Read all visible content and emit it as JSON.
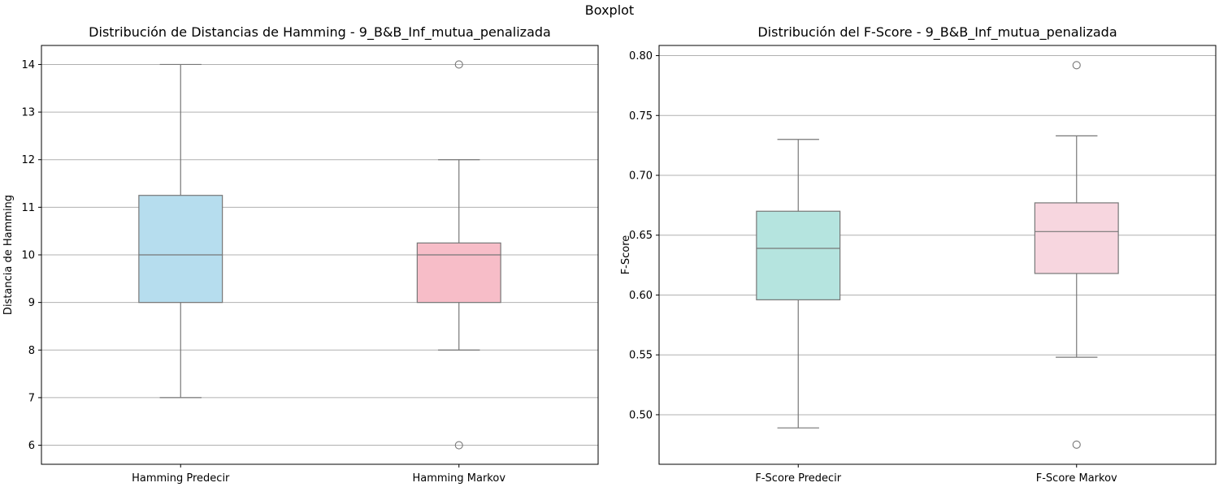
{
  "figure": {
    "suptitle": "Boxplot"
  },
  "chart_data": [
    {
      "type": "boxplot",
      "title": "Distribución de Distancias de Hamming - 9_B&B_Inf_mutua_penalizada",
      "xlabel": "",
      "ylabel": "Distancia de Hamming",
      "ylim": [
        5.6,
        14.4
      ],
      "yticks": [
        6,
        7,
        8,
        9,
        10,
        11,
        12,
        13,
        14
      ],
      "grid": "y",
      "categories": [
        "Hamming Predecir",
        "Hamming Markov"
      ],
      "boxes": [
        {
          "label": "Hamming Predecir",
          "whisker_low": 7,
          "q1": 9,
          "median": 10,
          "q3": 11.25,
          "whisker_high": 14,
          "outliers": [],
          "color": "#b6ddee"
        },
        {
          "label": "Hamming Markov",
          "whisker_low": 8,
          "q1": 9,
          "median": 10,
          "q3": 10.25,
          "whisker_high": 12,
          "outliers": [
            6,
            14
          ],
          "color": "#f7bdc8"
        }
      ]
    },
    {
      "type": "boxplot",
      "title": "Distribución del F-Score - 9_B&B_Inf_mutua_penalizada",
      "xlabel": "",
      "ylabel": "F-Score",
      "ylim": [
        0.4586,
        0.8085
      ],
      "yticks": [
        0.5,
        0.55,
        0.6,
        0.65,
        0.7,
        0.75,
        0.8
      ],
      "ytick_labels": [
        "0.50",
        "0.55",
        "0.60",
        "0.65",
        "0.70",
        "0.75",
        "0.80"
      ],
      "grid": "y",
      "categories": [
        "F-Score Predecir",
        "F-Score Markov"
      ],
      "boxes": [
        {
          "label": "F-Score Predecir",
          "whisker_low": 0.489,
          "q1": 0.596,
          "median": 0.639,
          "q3": 0.67,
          "whisker_high": 0.73,
          "outliers": [],
          "color": "#b5e4df"
        },
        {
          "label": "F-Score Markov",
          "whisker_low": 0.548,
          "q1": 0.618,
          "median": 0.653,
          "q3": 0.677,
          "whisker_high": 0.733,
          "outliers": [
            0.475,
            0.792
          ],
          "color": "#f7d6df"
        }
      ]
    }
  ]
}
